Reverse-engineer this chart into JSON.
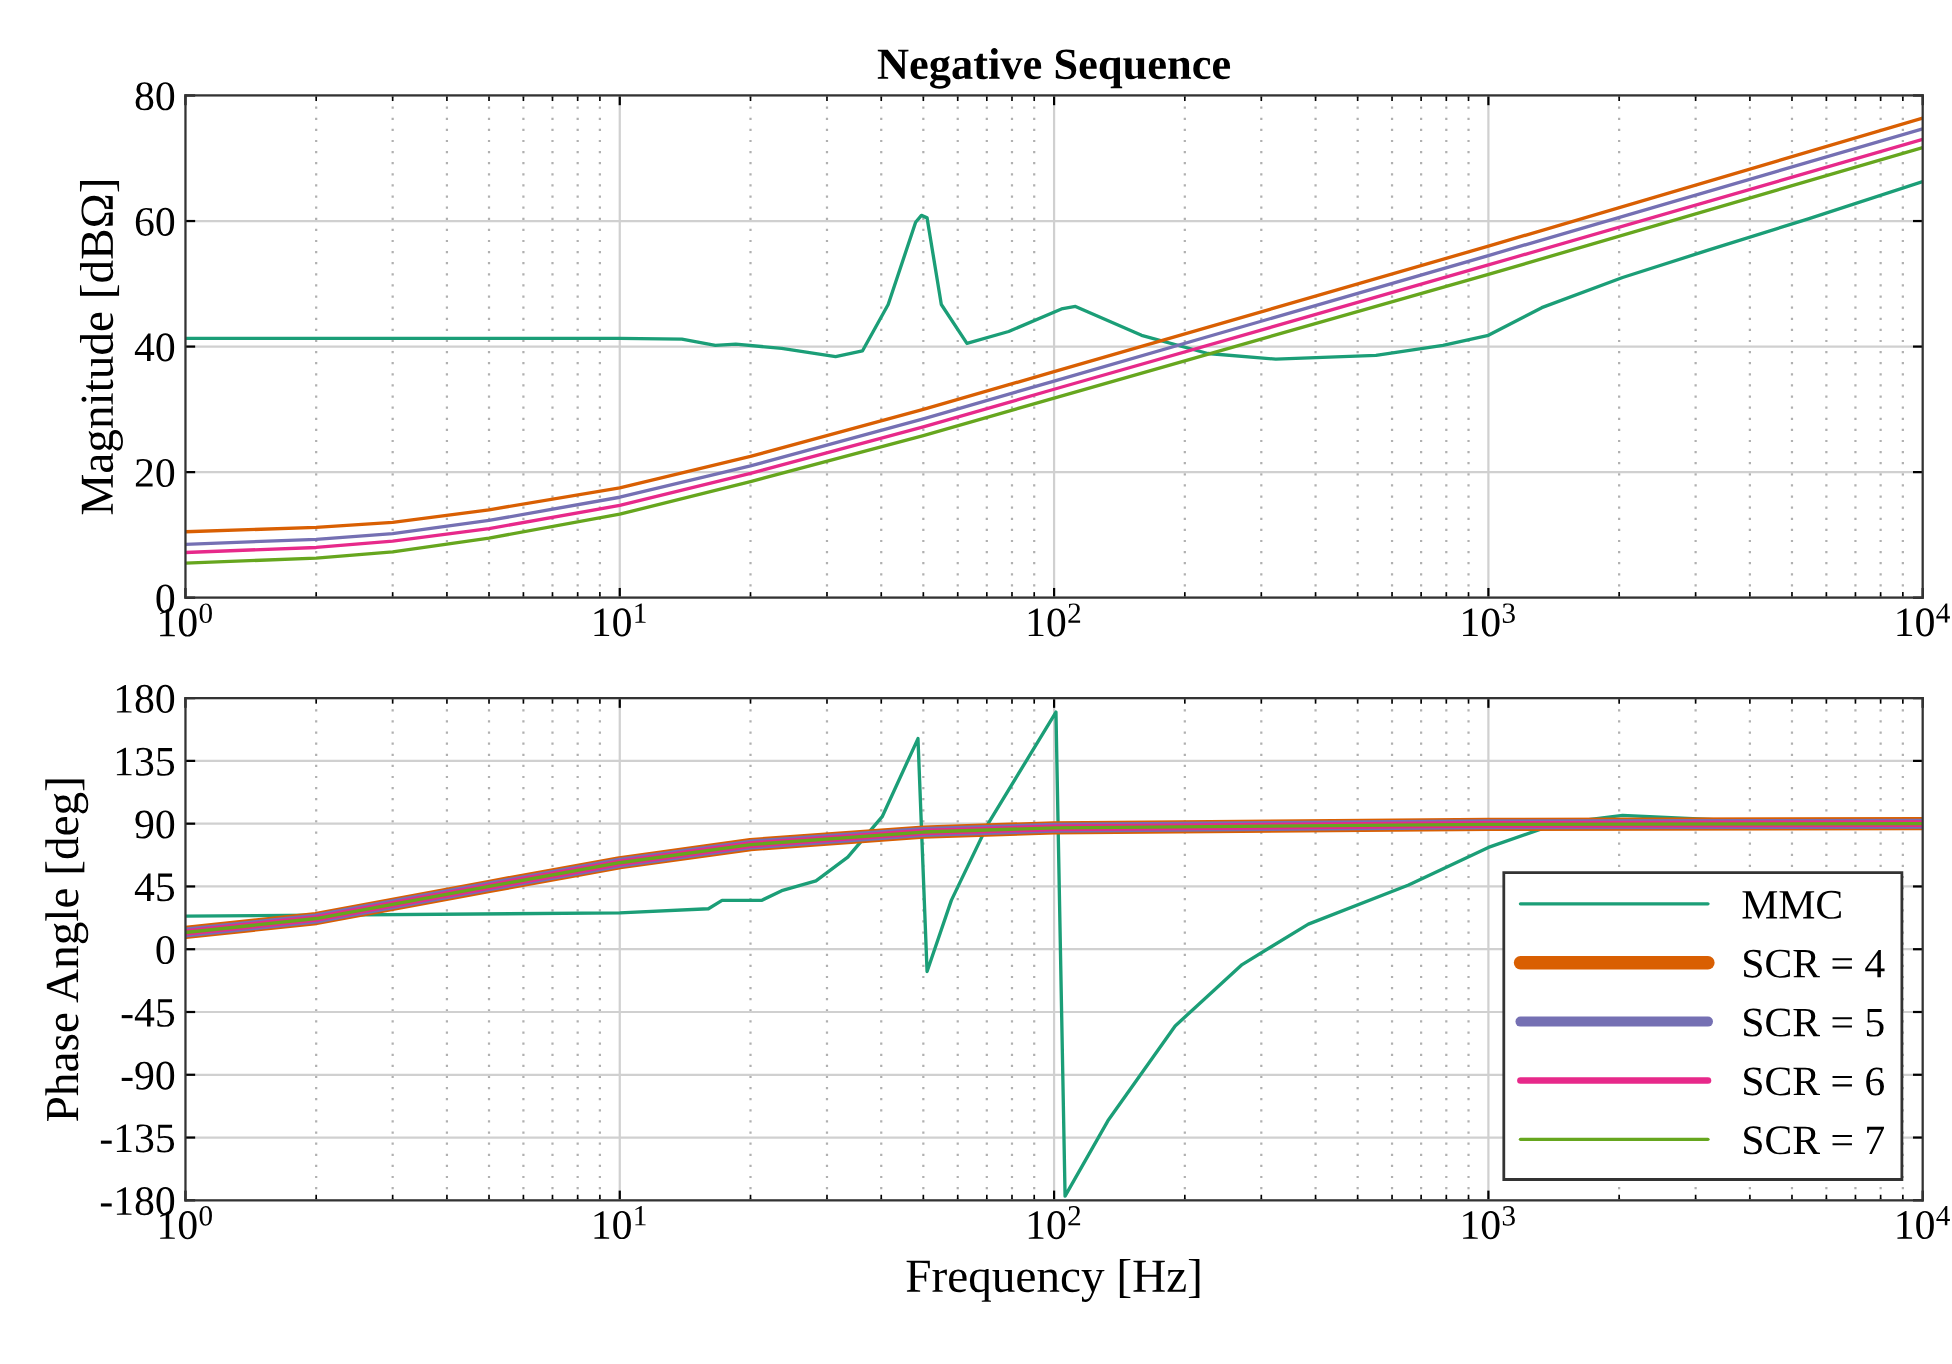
{
  "chart_data": [
    {
      "type": "line",
      "title": "Negative Sequence",
      "ylabel": "Magnitude [dBΩ]",
      "log": "x",
      "grid": true,
      "legend": false,
      "xlim": [
        1,
        10000
      ],
      "xticks": [
        {
          "value": 1,
          "label": "10$^{0}$"
        },
        {
          "value": 10,
          "label": "10$^{1}$"
        },
        {
          "value": 100,
          "label": "10$^{2}$"
        },
        {
          "value": 1000,
          "label": "10$^{3}$"
        },
        {
          "value": 10000,
          "label": "10$^{4}$"
        }
      ],
      "ylim": [
        0,
        80
      ],
      "yticks": [
        0,
        20,
        40,
        60,
        80
      ],
      "series": [
        {
          "color": "#1b9e77",
          "x": [
            1,
            10,
            13.9,
            16.6,
            18.5,
            23.6,
            31.4,
            36.2,
            41.5,
            48,
            49.5,
            51,
            55,
            63,
            78.6,
            104,
            112,
            159,
            226,
            324,
            551,
            786,
            1000,
            1327,
            2037,
            3220,
            5430,
            10000
          ],
          "values": [
            41.3,
            41.3,
            41.2,
            40.2,
            40.4,
            39.7,
            38.4,
            39.3,
            46.7,
            59.8,
            60.9,
            60.5,
            46.7,
            40.5,
            42.4,
            46,
            46.4,
            41.8,
            38.9,
            38,
            38.6,
            40.2,
            41.8,
            46.2,
            51,
            55.4,
            60.3,
            66.3
          ]
        },
        {
          "color": "#d95f02",
          "x": [
            1,
            2,
            3,
            5,
            10,
            20,
            50,
            100,
            1000,
            10000
          ],
          "values": [
            10.5,
            11.2,
            12,
            14,
            17.5,
            22.5,
            30,
            36,
            56,
            76.4
          ]
        },
        {
          "color": "#7570b3",
          "x": [
            1,
            2,
            3,
            5,
            10,
            20,
            50,
            100,
            1000,
            10000
          ],
          "values": [
            8.5,
            9.3,
            10.2,
            12.3,
            16,
            21,
            28.5,
            34.5,
            54.5,
            74.7
          ]
        },
        {
          "color": "#e7298a",
          "x": [
            1,
            2,
            3,
            5,
            10,
            20,
            50,
            100,
            1000,
            10000
          ],
          "values": [
            7.2,
            8,
            9,
            11,
            14.7,
            19.8,
            27.2,
            33.2,
            53,
            73
          ]
        },
        {
          "color": "#66a61e",
          "x": [
            1,
            2,
            3,
            5,
            10,
            20,
            50,
            100,
            1000,
            10000
          ],
          "values": [
            5.5,
            6.3,
            7.3,
            9.5,
            13.3,
            18.5,
            25.8,
            31.8,
            51.5,
            71.7
          ]
        }
      ]
    },
    {
      "type": "line",
      "xlabel": "Frequency [Hz]",
      "ylabel": "Phase Angle [deg]",
      "log": "x",
      "grid": true,
      "legend": "bottom right",
      "xlim": [
        1,
        10000
      ],
      "xticks": [
        {
          "value": 1,
          "label": "10$^{0}$"
        },
        {
          "value": 10,
          "label": "10$^{1}$"
        },
        {
          "value": 100,
          "label": "10$^{2}$"
        },
        {
          "value": 1000,
          "label": "10$^{3}$"
        },
        {
          "value": 10000,
          "label": "10$^{4}$"
        }
      ],
      "ylim": [
        -180,
        180
      ],
      "yticks": [
        -180,
        -135,
        -90,
        -45,
        0,
        45,
        90,
        135,
        180
      ],
      "series": [
        {
          "name": "MMC",
          "color": "#1b9e77",
          "x": [
            1,
            10,
            16,
            17.2,
            21.2,
            23.6,
            28.3,
            33.5,
            40.2,
            48.6,
            51,
            58,
            70.5,
            101,
            106,
            133,
            190,
            271,
            385,
            655,
            1000,
            1435,
            2037,
            3220,
            4750,
            10000
          ],
          "values": [
            23.7,
            26,
            29,
            35,
            35,
            42,
            49,
            66,
            95,
            151,
            -16,
            35,
            90,
            170,
            -177,
            -123,
            -55,
            -11,
            18,
            46,
            73,
            90,
            96,
            93,
            90,
            89
          ]
        },
        {
          "name": "SCR = 4",
          "color": "#d95f02",
          "x": [
            1,
            2,
            5,
            10,
            20,
            50,
            100,
            1000,
            10000
          ],
          "values": [
            12,
            22,
            45,
            62,
            75,
            84,
            87,
            89.5,
            90
          ]
        },
        {
          "name": "SCR = 5",
          "color": "#7570b3",
          "x": [
            1,
            2,
            5,
            10,
            20,
            50,
            100,
            1000,
            10000
          ],
          "values": [
            12,
            22,
            45,
            62,
            75,
            84,
            87,
            89.5,
            90
          ]
        },
        {
          "name": "SCR = 6",
          "color": "#e7298a",
          "x": [
            1,
            2,
            5,
            10,
            20,
            50,
            100,
            1000,
            10000
          ],
          "values": [
            12,
            22,
            45,
            62,
            75,
            84,
            87,
            89.5,
            90
          ]
        },
        {
          "name": "SCR = 7",
          "color": "#66a61e",
          "x": [
            1,
            2,
            5,
            10,
            20,
            50,
            100,
            1000,
            10000
          ],
          "values": [
            12,
            22,
            45,
            62,
            75,
            84,
            87,
            89.5,
            90
          ]
        }
      ]
    }
  ]
}
